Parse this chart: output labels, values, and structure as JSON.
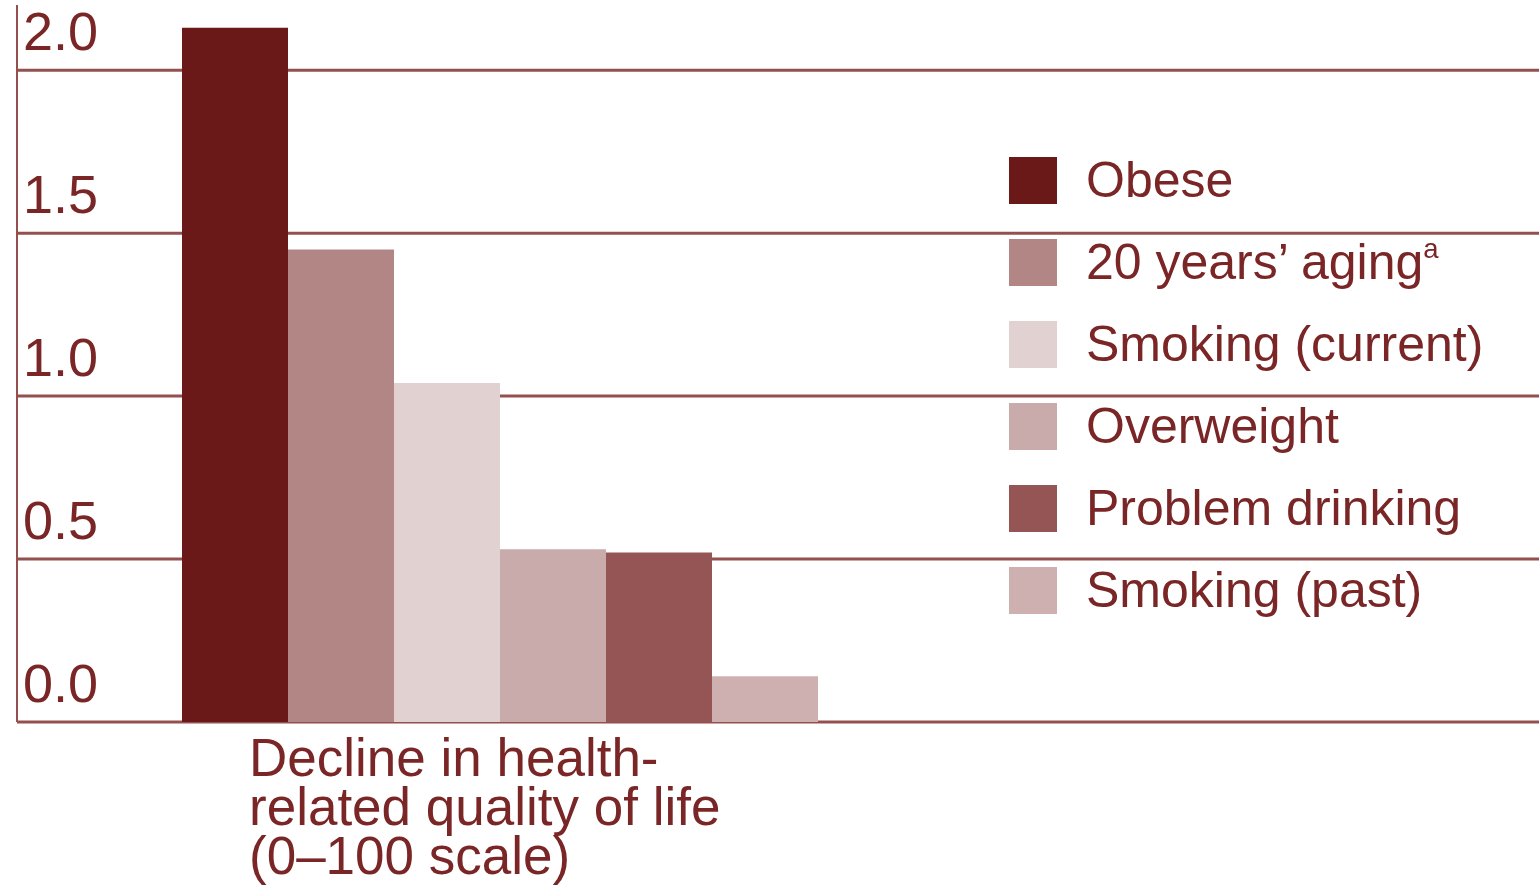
{
  "chart_data": {
    "type": "bar",
    "categories": [
      null
    ],
    "series": [
      {
        "name": "Obese",
        "color": "#6b1818",
        "values": [
          2.13
        ]
      },
      {
        "name": "20 years’ aging$^{a}$",
        "color": "#b38686",
        "values": [
          1.45
        ]
      },
      {
        "name": "Smoking (current)",
        "color": "#e1d1d1",
        "values": [
          1.04
        ]
      },
      {
        "name": "Overweight",
        "color": "#c9abab",
        "values": [
          0.53
        ]
      },
      {
        "name": "Problem drinking",
        "color": "#955555",
        "values": [
          0.52
        ]
      },
      {
        "name": "Smoking (past)",
        "color": "#ceb0b0",
        "values": [
          0.14
        ]
      }
    ],
    "xlabel": "Decline in health-related quality of life (0–100 scale)",
    "ylim": [
      0,
      2.2
    ],
    "yticks": [
      {
        "value": 0,
        "label": "0.0"
      },
      {
        "value": 0.5,
        "label": "0.5"
      },
      {
        "value": 1,
        "label": "1.0"
      },
      {
        "value": 1.5,
        "label": "1.5"
      },
      {
        "value": 2,
        "label": "2.0"
      }
    ],
    "grid": "y",
    "legend": "right"
  }
}
